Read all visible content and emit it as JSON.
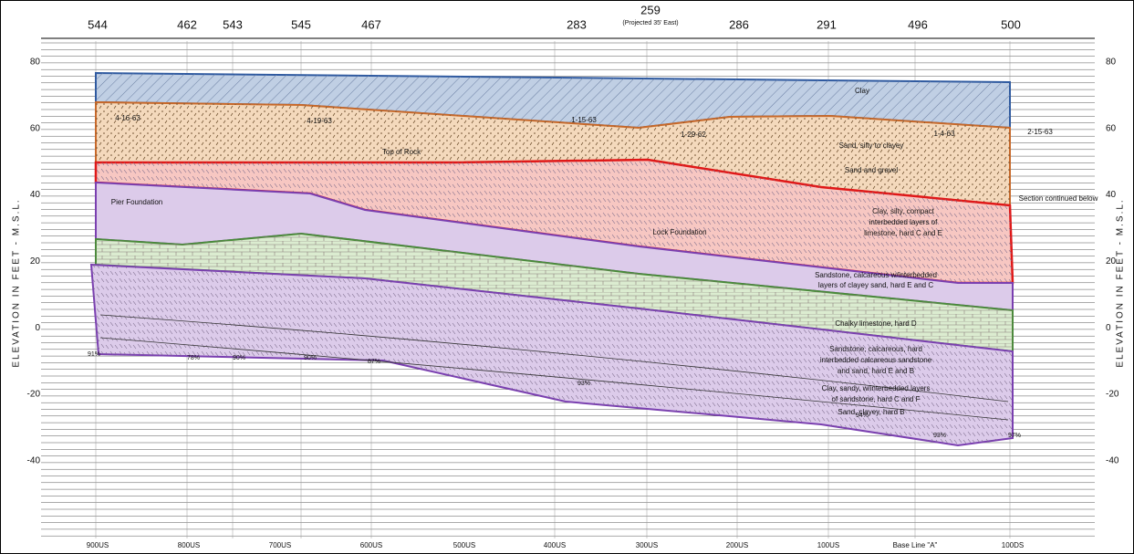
{
  "borings": [
    {
      "label": "544"
    },
    {
      "label": "462"
    },
    {
      "label": "543"
    },
    {
      "label": "545"
    },
    {
      "label": "467"
    },
    {
      "label": "283"
    },
    {
      "label": "259",
      "note": "(Projected 35' East)"
    },
    {
      "label": "286"
    },
    {
      "label": "291"
    },
    {
      "label": "496"
    },
    {
      "label": "500"
    }
  ],
  "elevation_axis": {
    "title": "ELEVATION IN FEET - M.S.L.",
    "ticks": [
      "80",
      "60",
      "40",
      "20",
      "0",
      "-20",
      "-40"
    ]
  },
  "stations": [
    "900US",
    "800US",
    "700US",
    "600US",
    "500US",
    "400US",
    "300US",
    "200US",
    "100US",
    "Base Line \"A\"",
    "100DS"
  ],
  "layer_labels": [
    "Clay",
    "Sand, silty to clayey",
    "Sand and gravel",
    "Top of Rock",
    "Pier Foundation",
    "Lock Foundation",
    "Clay, silty, compact",
    "interbedded layers of",
    "limestone, hard C and E",
    "Section continued below",
    "Sandstone, calcareous w/interbedded",
    "layers of clayey sand, hard E and C",
    "Chalky limestone, hard D",
    "Sandstone, calcareous, hard",
    "interbedded calcareous sandstone",
    "and sand, hard E and B",
    "Clay, sandy, w/interbedded layers",
    "of sandstone, hard C and F",
    "Sand, clayey, hard B"
  ],
  "dates": [
    "4-16-63",
    "4-19-63",
    "1-15-63",
    "1-29-62",
    "1-4-63",
    "2-15-63"
  ],
  "recoveries": [
    "91%",
    "78%",
    "90%",
    "90%",
    "87%",
    "93%",
    "94%",
    "93%",
    "97%"
  ]
}
